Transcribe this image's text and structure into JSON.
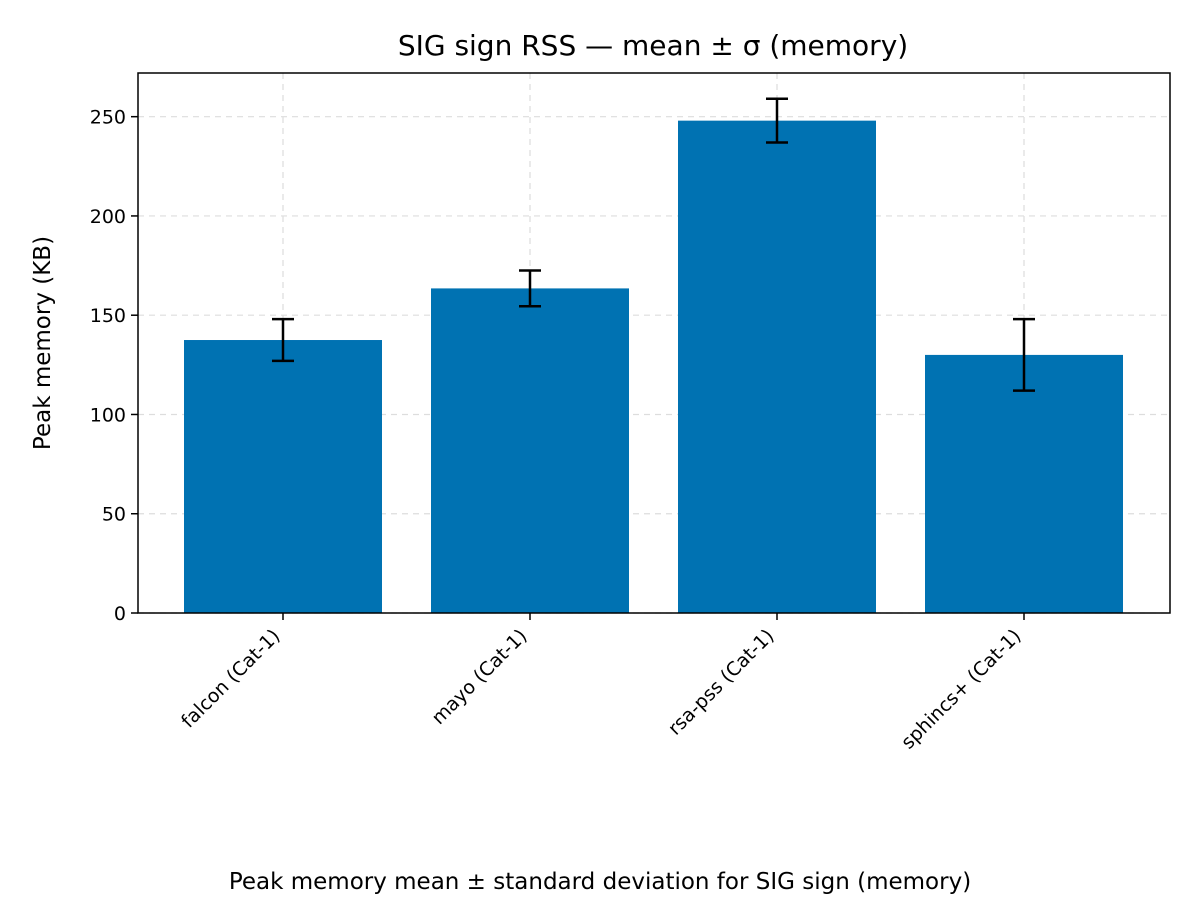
{
  "chart_data": {
    "type": "bar",
    "title": "SIG sign RSS — mean ± σ (memory)",
    "xlabel": "",
    "ylabel": "Peak memory (KB)",
    "caption": "Peak memory mean ± standard deviation for SIG sign (memory)",
    "categories": [
      "falcon (Cat-1)",
      "mayo (Cat-1)",
      "rsa-pss (Cat-1)",
      "sphincs+ (Cat-1)"
    ],
    "values": [
      137.5,
      163.5,
      248.0,
      130.0
    ],
    "errors": [
      10.5,
      9.0,
      11.0,
      18.0
    ],
    "ylim": [
      0,
      272
    ],
    "yticks": [
      0,
      50,
      100,
      150,
      200,
      250
    ],
    "grid": true,
    "legend": "none",
    "colors": {
      "bar": "#0072b2",
      "error_bar": "#000000",
      "grid": "#dddddd",
      "axis": "#000000"
    }
  }
}
